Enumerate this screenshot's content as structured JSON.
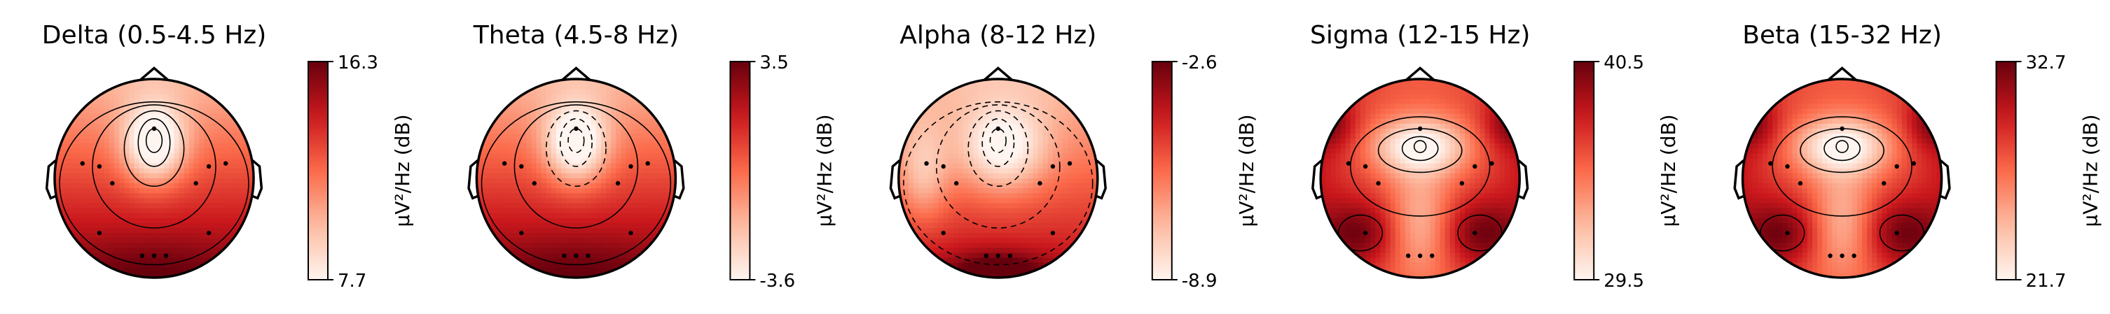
{
  "chart_data": [
    {
      "type": "heatmap",
      "title": "Delta (0.5-4.5 Hz)",
      "colorbar": {
        "label": "μV²/Hz (dB)",
        "max_label": "16.3",
        "min_label": "7.7",
        "range": [
          7.7,
          16.3
        ]
      },
      "pattern": "frontal-peak-low",
      "contours": {
        "style": "solid",
        "levels": 5
      }
    },
    {
      "type": "heatmap",
      "title": "Theta (4.5-8 Hz)",
      "colorbar": {
        "label": "μV²/Hz (dB)",
        "max_label": "3.5",
        "min_label": "-3.6",
        "range": [
          -3.6,
          3.5
        ]
      },
      "pattern": "frontal-peak-low",
      "contours": {
        "style": "mixed",
        "levels": 5
      }
    },
    {
      "type": "heatmap",
      "title": "Alpha (8-12 Hz)",
      "colorbar": {
        "label": "μV²/Hz (dB)",
        "max_label": "-2.6",
        "min_label": "-8.9",
        "range": [
          -8.9,
          -2.6
        ]
      },
      "pattern": "frontal-low-occipital-high",
      "contours": {
        "style": "dashed",
        "levels": 5
      }
    },
    {
      "type": "heatmap",
      "title": "Sigma (12-15 Hz)",
      "colorbar": {
        "label": "μV²/Hz (dB)",
        "max_label": "40.5",
        "min_label": "29.5",
        "range": [
          29.5,
          40.5
        ]
      },
      "pattern": "central-low-lateral-occipital-high",
      "contours": {
        "style": "solid",
        "levels": 6
      }
    },
    {
      "type": "heatmap",
      "title": "Beta (15-32 Hz)",
      "colorbar": {
        "label": "μV²/Hz (dB)",
        "max_label": "32.7",
        "min_label": "21.7",
        "range": [
          21.7,
          32.7
        ]
      },
      "pattern": "central-low-lateral-occipital-high",
      "contours": {
        "style": "solid",
        "levels": 6
      }
    }
  ],
  "colors": {
    "colormap": [
      "#fff5f0",
      "#fcbba1",
      "#fb6a4a",
      "#cb181d",
      "#67000d"
    ],
    "outline": "#000000",
    "background": "#ffffff"
  }
}
